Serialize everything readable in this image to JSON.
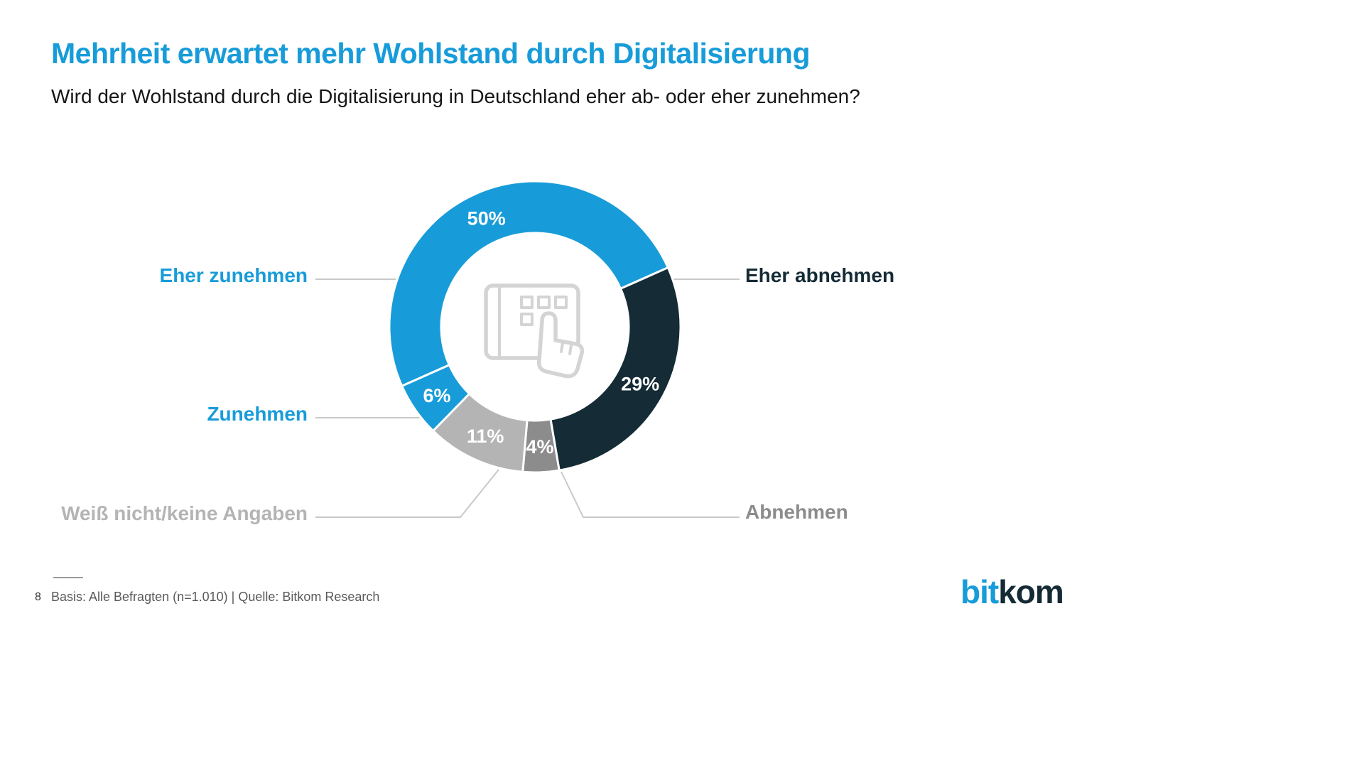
{
  "header": {
    "title": "Mehrheit erwartet mehr Wohlstand durch Digitalisierung",
    "subtitle": "Wird der Wohlstand durch die Digitalisierung in Deutschland eher ab- oder eher zunehmen?"
  },
  "chart_data": {
    "type": "pie",
    "subtype": "donut",
    "question": "Wird der Wohlstand durch die Digitalisierung in Deutschland eher ab- oder eher zunehmen?",
    "unit": "%",
    "start_angle_deg": -114,
    "order": "clockwise",
    "value_label_color": "#ffffff",
    "legend_position": "callout-labels",
    "center_icon": "tablet-touch-hand",
    "segments": [
      {
        "label": "Eher zunehmen",
        "value": 50,
        "display": "50%",
        "color": "#189cd9",
        "label_color": "#189cd9"
      },
      {
        "label": "Eher abnehmen",
        "value": 29,
        "display": "29%",
        "color": "#152b36",
        "label_color": "#152b36"
      },
      {
        "label": "Abnehmen",
        "value": 4,
        "display": "4%",
        "color": "#8c8c8c",
        "label_color": "#8c8c8c"
      },
      {
        "label": "Weiß nicht/keine Angaben",
        "value": 11,
        "display": "11%",
        "color": "#b4b4b4",
        "label_color": "#b4b4b4"
      },
      {
        "label": "Zunehmen",
        "value": 6,
        "display": "6%",
        "color": "#189cd9",
        "label_color": "#189cd9"
      }
    ]
  },
  "footer": {
    "page_number": "8",
    "source": "Basis: Alle Befragten (n=1.010) | Quelle: Bitkom Research",
    "logo_part1": "bit",
    "logo_part2": "kom"
  },
  "colors": {
    "brand_blue": "#189cd9",
    "brand_dark": "#152b36",
    "mid_gray": "#8c8c8c",
    "light_gray": "#b4b4b4",
    "line_gray": "#c9c9c9",
    "icon_gray": "#d4d4d4"
  }
}
